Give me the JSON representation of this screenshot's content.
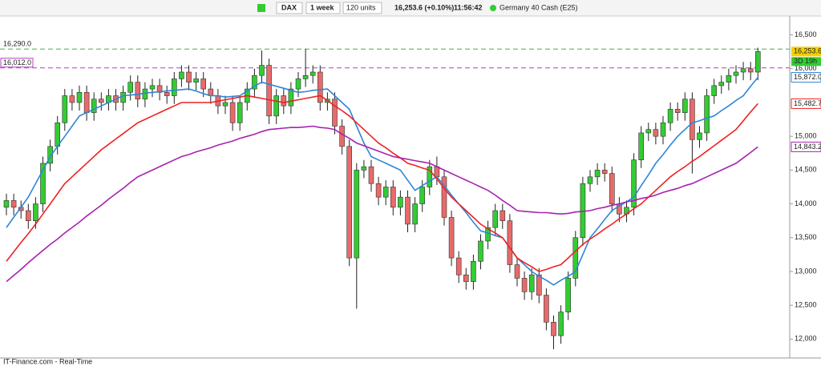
{
  "toolbar": {
    "symbol": "DAX",
    "period": "1 week",
    "units": "120 units",
    "quote": "16,253.6 (+0.10%)",
    "time": "11:56:42",
    "instrument": "Germany 40 Cash (E25)"
  },
  "footer": "IT-Finance.com - Real-Time",
  "chart_data": {
    "type": "candlestick",
    "ylim": [
      11720,
      16720
    ],
    "yticks": [
      {
        "value": 16500,
        "label": "16,500"
      },
      {
        "value": 16000,
        "label": "16,000"
      },
      {
        "value": 15000,
        "label": "15,000"
      },
      {
        "value": 14500,
        "label": "14,500"
      },
      {
        "value": 14000,
        "label": "14,000"
      },
      {
        "value": 13500,
        "label": "13,500"
      },
      {
        "value": 13000,
        "label": "13,000"
      },
      {
        "value": 12500,
        "label": "12,500"
      },
      {
        "value": 12000,
        "label": "12,000"
      }
    ],
    "up_color": "#33cc33",
    "down_color": "#e86a6a",
    "last_label": "16,253.6",
    "countdown": "3D 19h",
    "open": [
      13950,
      14050,
      13950,
      13900,
      13750,
      14000,
      14600,
      14850,
      15200,
      15600,
      15500,
      15650,
      15350,
      15550,
      15500,
      15600,
      15500,
      15650,
      15800,
      15550,
      15700,
      15750,
      15650,
      15600,
      15850,
      15950,
      15800,
      15850,
      15700,
      15600,
      15450,
      15500,
      15200,
      15500,
      15700,
      15900,
      16050,
      15300,
      15600,
      15450,
      15700,
      15850,
      15900,
      15950,
      15500,
      15550,
      15150,
      14850,
      13200,
      14500,
      14550,
      14300,
      14100,
      14250,
      13950,
      14100,
      13700,
      14000,
      14250,
      14550,
      14400,
      13800,
      13200,
      12950,
      12850,
      13150,
      13450,
      13650,
      13900,
      13750,
      13100,
      12900,
      12700,
      12950,
      12650,
      12250,
      12050,
      12400,
      12900,
      13500,
      14300,
      14400,
      14500,
      14450,
      14000,
      13850,
      13950,
      14650,
      15050,
      15100,
      15000,
      15200,
      15400,
      15350,
      15550,
      14950,
      15050,
      15600,
      15750,
      15800,
      15900,
      15950,
      16000,
      15950
    ],
    "high": [
      14150,
      14150,
      14050,
      14000,
      14100,
      14700,
      14950,
      15300,
      15700,
      15700,
      15750,
      15750,
      15650,
      15650,
      15700,
      15700,
      15750,
      15900,
      15900,
      15800,
      15850,
      15850,
      15750,
      15950,
      16050,
      16050,
      15950,
      15950,
      15800,
      15700,
      15600,
      15600,
      15600,
      15800,
      16000,
      16270,
      16150,
      15700,
      15700,
      15800,
      15950,
      16290,
      16050,
      16050,
      15650,
      15650,
      15250,
      14950,
      14600,
      14650,
      14650,
      14400,
      14350,
      14350,
      14200,
      14200,
      14100,
      14350,
      14650,
      14700,
      14500,
      13900,
      13300,
      13050,
      13250,
      13550,
      13750,
      14000,
      14000,
      13850,
      13200,
      13000,
      13050,
      13050,
      12750,
      12350,
      12500,
      13000,
      13600,
      14400,
      14500,
      14600,
      14600,
      14550,
      14100,
      14050,
      14750,
      15150,
      15200,
      15200,
      15300,
      15500,
      15500,
      15650,
      15650,
      15150,
      15700,
      15850,
      15900,
      16000,
      16050,
      16100,
      16100,
      16310
    ],
    "low": [
      13830,
      13830,
      13780,
      13630,
      13630,
      13880,
      14480,
      14730,
      15080,
      15380,
      15380,
      15230,
      15230,
      15380,
      15380,
      15380,
      15380,
      15530,
      15430,
      15430,
      15580,
      15530,
      15480,
      15480,
      15730,
      15680,
      15680,
      15580,
      15480,
      15330,
      15330,
      15080,
      15080,
      15380,
      15580,
      15780,
      15180,
      15180,
      15330,
      15330,
      15580,
      15730,
      15780,
      15380,
      15380,
      15030,
      14730,
      13080,
      12450,
      14380,
      14180,
      13980,
      13980,
      13830,
      13830,
      13580,
      13580,
      13880,
      14130,
      14280,
      13680,
      13080,
      12830,
      12730,
      12730,
      13030,
      13330,
      13530,
      13630,
      12980,
      12780,
      12580,
      12580,
      12530,
      12130,
      11850,
      11930,
      12280,
      12780,
      13380,
      14180,
      14280,
      14330,
      13880,
      13730,
      13730,
      13830,
      14530,
      14930,
      14880,
      14880,
      15080,
      15230,
      15230,
      14450,
      14830,
      14930,
      15480,
      15630,
      15680,
      15780,
      15830,
      15830,
      15830
    ],
    "close": [
      14050,
      13950,
      13900,
      13750,
      14000,
      14600,
      14850,
      15200,
      15600,
      15500,
      15650,
      15350,
      15550,
      15500,
      15600,
      15500,
      15650,
      15800,
      15550,
      15700,
      15750,
      15650,
      15600,
      15850,
      15950,
      15800,
      15850,
      15700,
      15600,
      15450,
      15500,
      15200,
      15500,
      15700,
      15900,
      16050,
      15300,
      15600,
      15450,
      15700,
      15850,
      15900,
      15950,
      15500,
      15550,
      15150,
      14850,
      13200,
      14500,
      14550,
      14300,
      14100,
      14250,
      13950,
      14100,
      13700,
      14000,
      14250,
      14550,
      14400,
      13800,
      13200,
      12950,
      12850,
      13150,
      13450,
      13650,
      13900,
      13750,
      13100,
      12900,
      12700,
      12950,
      12650,
      12250,
      12050,
      12400,
      12900,
      13500,
      14300,
      14400,
      14500,
      14450,
      14000,
      13850,
      13950,
      14650,
      15050,
      15100,
      15000,
      15200,
      15400,
      15350,
      15550,
      14950,
      15050,
      15600,
      15750,
      15800,
      15900,
      15950,
      16000,
      15950,
      16253.6
    ],
    "series": [
      {
        "color": "#2f86d6",
        "end_label": "15,872.0",
        "values": [
          13650,
          13800,
          13950,
          14100,
          14300,
          14500,
          14700,
          14850,
          15000,
          15150,
          15300,
          15350,
          15400,
          15450,
          15500,
          15550,
          15600,
          15610,
          15620,
          15640,
          15650,
          15660,
          15670,
          15680,
          15690,
          15700,
          15670,
          15630,
          15600,
          15600,
          15580,
          15590,
          15600,
          15670,
          15740,
          15800,
          15770,
          15740,
          15710,
          15680,
          15650,
          15660,
          15680,
          15690,
          15700,
          15600,
          15500,
          15400,
          15150,
          14900,
          14700,
          14650,
          14600,
          14550,
          14500,
          14350,
          14200,
          14270,
          14340,
          14400,
          14270,
          14130,
          14000,
          13870,
          13730,
          13600,
          13570,
          13530,
          13500,
          13350,
          13200,
          13100,
          13000,
          12930,
          12870,
          12800,
          12870,
          12930,
          13000,
          13250,
          13500,
          13630,
          13770,
          13900,
          13970,
          14030,
          14100,
          14270,
          14430,
          14600,
          14730,
          14870,
          15000,
          15100,
          15200,
          15230,
          15270,
          15300,
          15380,
          15450,
          15530,
          15600,
          15740,
          15872
        ]
      },
      {
        "color": "#ee2222",
        "end_label": "15,482.7",
        "values": [
          13150,
          13290,
          13430,
          13560,
          13700,
          13850,
          14000,
          14150,
          14300,
          14400,
          14500,
          14600,
          14700,
          14800,
          14880,
          14960,
          15040,
          15120,
          15200,
          15250,
          15300,
          15350,
          15400,
          15450,
          15500,
          15500,
          15500,
          15500,
          15500,
          15520,
          15540,
          15560,
          15580,
          15600,
          15580,
          15560,
          15540,
          15520,
          15500,
          15520,
          15540,
          15560,
          15580,
          15600,
          15530,
          15450,
          15380,
          15300,
          15200,
          15100,
          15000,
          14900,
          14830,
          14750,
          14680,
          14600,
          14570,
          14530,
          14500,
          14370,
          14230,
          14100,
          14000,
          13900,
          13800,
          13700,
          13630,
          13570,
          13500,
          13350,
          13200,
          13130,
          13070,
          13000,
          13030,
          13070,
          13100,
          13200,
          13300,
          13400,
          13480,
          13550,
          13630,
          13700,
          13780,
          13850,
          13930,
          14000,
          14100,
          14200,
          14300,
          14400,
          14480,
          14550,
          14630,
          14700,
          14780,
          14860,
          14940,
          15020,
          15100,
          15230,
          15360,
          15482.7
        ]
      },
      {
        "color": "#a822b0",
        "end_label": "14,843.2",
        "values": [
          12850,
          12940,
          13030,
          13130,
          13220,
          13310,
          13400,
          13480,
          13570,
          13650,
          13730,
          13820,
          13900,
          13980,
          14070,
          14150,
          14230,
          14320,
          14400,
          14450,
          14500,
          14550,
          14600,
          14650,
          14700,
          14730,
          14770,
          14800,
          14830,
          14870,
          14900,
          14930,
          14970,
          15000,
          15030,
          15070,
          15100,
          15110,
          15120,
          15130,
          15130,
          15140,
          15150,
          15130,
          15120,
          15100,
          15030,
          14970,
          14900,
          14860,
          14820,
          14780,
          14740,
          14700,
          14680,
          14660,
          14640,
          14620,
          14600,
          14550,
          14500,
          14450,
          14400,
          14350,
          14300,
          14250,
          14200,
          14130,
          14050,
          13980,
          13900,
          13890,
          13880,
          13870,
          13870,
          13860,
          13850,
          13860,
          13880,
          13890,
          13900,
          13930,
          13950,
          13980,
          14000,
          14030,
          14050,
          14080,
          14100,
          14130,
          14170,
          14200,
          14230,
          14270,
          14300,
          14350,
          14400,
          14450,
          14500,
          14550,
          14600,
          14680,
          14760,
          14843.2
        ]
      }
    ],
    "reference_lines": [
      {
        "value": 16290,
        "label": "16,290.0",
        "color": "#4caf50"
      },
      {
        "value": 16012,
        "label": "16,012.0",
        "color": "#b040c0"
      }
    ]
  }
}
